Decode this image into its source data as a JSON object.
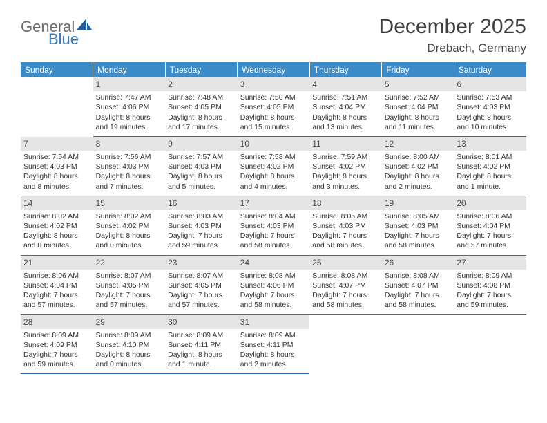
{
  "brand": {
    "word1": "General",
    "word2": "Blue"
  },
  "title": {
    "month": "December 2025",
    "location": "Drebach, Germany"
  },
  "colors": {
    "header_bg": "#3b8bc8",
    "header_text": "#ffffff",
    "daynum_bg": "#e5e5e5",
    "rule": "#2f6fa8",
    "brand_grey": "#6b6b6b",
    "brand_blue": "#2f7ac0",
    "sail_blue": "#1f5f9e",
    "text": "#333333"
  },
  "day_headers": [
    "Sunday",
    "Monday",
    "Tuesday",
    "Wednesday",
    "Thursday",
    "Friday",
    "Saturday"
  ],
  "weeks": [
    [
      null,
      {
        "n": "1",
        "sunrise": "Sunrise: 7:47 AM",
        "sunset": "Sunset: 4:06 PM",
        "d1": "Daylight: 8 hours",
        "d2": "and 19 minutes."
      },
      {
        "n": "2",
        "sunrise": "Sunrise: 7:48 AM",
        "sunset": "Sunset: 4:05 PM",
        "d1": "Daylight: 8 hours",
        "d2": "and 17 minutes."
      },
      {
        "n": "3",
        "sunrise": "Sunrise: 7:50 AM",
        "sunset": "Sunset: 4:05 PM",
        "d1": "Daylight: 8 hours",
        "d2": "and 15 minutes."
      },
      {
        "n": "4",
        "sunrise": "Sunrise: 7:51 AM",
        "sunset": "Sunset: 4:04 PM",
        "d1": "Daylight: 8 hours",
        "d2": "and 13 minutes."
      },
      {
        "n": "5",
        "sunrise": "Sunrise: 7:52 AM",
        "sunset": "Sunset: 4:04 PM",
        "d1": "Daylight: 8 hours",
        "d2": "and 11 minutes."
      },
      {
        "n": "6",
        "sunrise": "Sunrise: 7:53 AM",
        "sunset": "Sunset: 4:03 PM",
        "d1": "Daylight: 8 hours",
        "d2": "and 10 minutes."
      }
    ],
    [
      {
        "n": "7",
        "sunrise": "Sunrise: 7:54 AM",
        "sunset": "Sunset: 4:03 PM",
        "d1": "Daylight: 8 hours",
        "d2": "and 8 minutes."
      },
      {
        "n": "8",
        "sunrise": "Sunrise: 7:56 AM",
        "sunset": "Sunset: 4:03 PM",
        "d1": "Daylight: 8 hours",
        "d2": "and 7 minutes."
      },
      {
        "n": "9",
        "sunrise": "Sunrise: 7:57 AM",
        "sunset": "Sunset: 4:03 PM",
        "d1": "Daylight: 8 hours",
        "d2": "and 5 minutes."
      },
      {
        "n": "10",
        "sunrise": "Sunrise: 7:58 AM",
        "sunset": "Sunset: 4:02 PM",
        "d1": "Daylight: 8 hours",
        "d2": "and 4 minutes."
      },
      {
        "n": "11",
        "sunrise": "Sunrise: 7:59 AM",
        "sunset": "Sunset: 4:02 PM",
        "d1": "Daylight: 8 hours",
        "d2": "and 3 minutes."
      },
      {
        "n": "12",
        "sunrise": "Sunrise: 8:00 AM",
        "sunset": "Sunset: 4:02 PM",
        "d1": "Daylight: 8 hours",
        "d2": "and 2 minutes."
      },
      {
        "n": "13",
        "sunrise": "Sunrise: 8:01 AM",
        "sunset": "Sunset: 4:02 PM",
        "d1": "Daylight: 8 hours",
        "d2": "and 1 minute."
      }
    ],
    [
      {
        "n": "14",
        "sunrise": "Sunrise: 8:02 AM",
        "sunset": "Sunset: 4:02 PM",
        "d1": "Daylight: 8 hours",
        "d2": "and 0 minutes."
      },
      {
        "n": "15",
        "sunrise": "Sunrise: 8:02 AM",
        "sunset": "Sunset: 4:02 PM",
        "d1": "Daylight: 8 hours",
        "d2": "and 0 minutes."
      },
      {
        "n": "16",
        "sunrise": "Sunrise: 8:03 AM",
        "sunset": "Sunset: 4:03 PM",
        "d1": "Daylight: 7 hours",
        "d2": "and 59 minutes."
      },
      {
        "n": "17",
        "sunrise": "Sunrise: 8:04 AM",
        "sunset": "Sunset: 4:03 PM",
        "d1": "Daylight: 7 hours",
        "d2": "and 58 minutes."
      },
      {
        "n": "18",
        "sunrise": "Sunrise: 8:05 AM",
        "sunset": "Sunset: 4:03 PM",
        "d1": "Daylight: 7 hours",
        "d2": "and 58 minutes."
      },
      {
        "n": "19",
        "sunrise": "Sunrise: 8:05 AM",
        "sunset": "Sunset: 4:03 PM",
        "d1": "Daylight: 7 hours",
        "d2": "and 58 minutes."
      },
      {
        "n": "20",
        "sunrise": "Sunrise: 8:06 AM",
        "sunset": "Sunset: 4:04 PM",
        "d1": "Daylight: 7 hours",
        "d2": "and 57 minutes."
      }
    ],
    [
      {
        "n": "21",
        "sunrise": "Sunrise: 8:06 AM",
        "sunset": "Sunset: 4:04 PM",
        "d1": "Daylight: 7 hours",
        "d2": "and 57 minutes."
      },
      {
        "n": "22",
        "sunrise": "Sunrise: 8:07 AM",
        "sunset": "Sunset: 4:05 PM",
        "d1": "Daylight: 7 hours",
        "d2": "and 57 minutes."
      },
      {
        "n": "23",
        "sunrise": "Sunrise: 8:07 AM",
        "sunset": "Sunset: 4:05 PM",
        "d1": "Daylight: 7 hours",
        "d2": "and 57 minutes."
      },
      {
        "n": "24",
        "sunrise": "Sunrise: 8:08 AM",
        "sunset": "Sunset: 4:06 PM",
        "d1": "Daylight: 7 hours",
        "d2": "and 58 minutes."
      },
      {
        "n": "25",
        "sunrise": "Sunrise: 8:08 AM",
        "sunset": "Sunset: 4:07 PM",
        "d1": "Daylight: 7 hours",
        "d2": "and 58 minutes."
      },
      {
        "n": "26",
        "sunrise": "Sunrise: 8:08 AM",
        "sunset": "Sunset: 4:07 PM",
        "d1": "Daylight: 7 hours",
        "d2": "and 58 minutes."
      },
      {
        "n": "27",
        "sunrise": "Sunrise: 8:09 AM",
        "sunset": "Sunset: 4:08 PM",
        "d1": "Daylight: 7 hours",
        "d2": "and 59 minutes."
      }
    ],
    [
      {
        "n": "28",
        "sunrise": "Sunrise: 8:09 AM",
        "sunset": "Sunset: 4:09 PM",
        "d1": "Daylight: 7 hours",
        "d2": "and 59 minutes."
      },
      {
        "n": "29",
        "sunrise": "Sunrise: 8:09 AM",
        "sunset": "Sunset: 4:10 PM",
        "d1": "Daylight: 8 hours",
        "d2": "and 0 minutes."
      },
      {
        "n": "30",
        "sunrise": "Sunrise: 8:09 AM",
        "sunset": "Sunset: 4:11 PM",
        "d1": "Daylight: 8 hours",
        "d2": "and 1 minute."
      },
      {
        "n": "31",
        "sunrise": "Sunrise: 8:09 AM",
        "sunset": "Sunset: 4:11 PM",
        "d1": "Daylight: 8 hours",
        "d2": "and 2 minutes."
      },
      null,
      null,
      null
    ]
  ]
}
